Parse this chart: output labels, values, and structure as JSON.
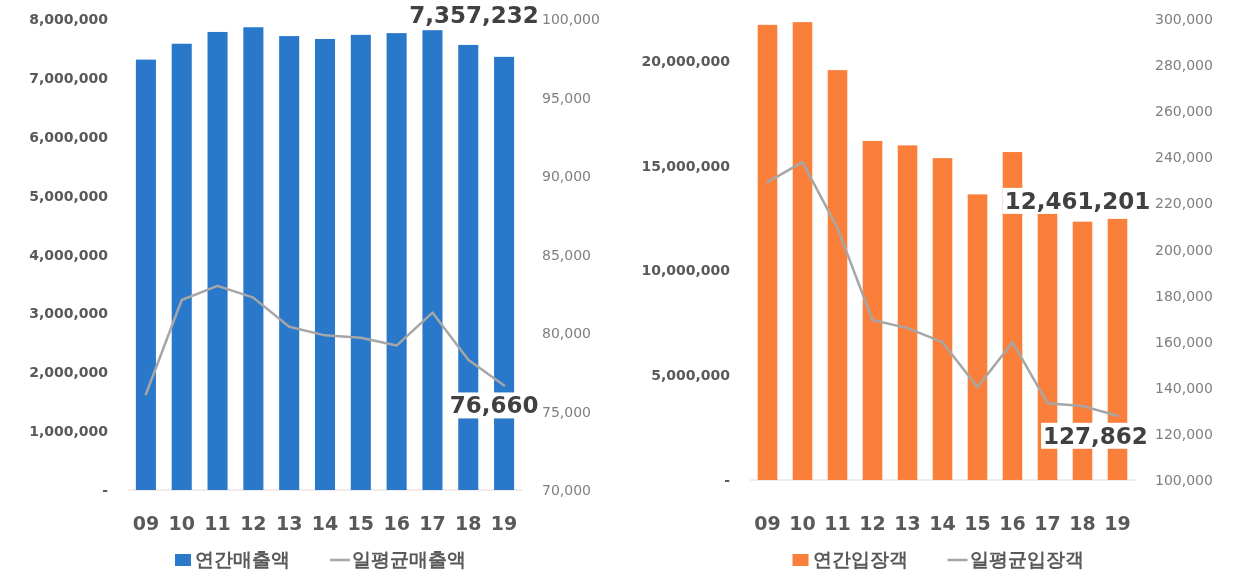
{
  "chart_data": [
    {
      "type": "bar",
      "categories": [
        "09",
        "10",
        "11",
        "12",
        "13",
        "14",
        "15",
        "16",
        "17",
        "18",
        "19"
      ],
      "series": [
        {
          "name": "연간매출액",
          "color": "#2a78c9",
          "values": [
            7310000,
            7580000,
            7780000,
            7860000,
            7710000,
            7660000,
            7730000,
            7760000,
            7810000,
            7560000,
            7357232
          ]
        },
        {
          "name": "일평균매출액",
          "type": "line",
          "axis": "y2",
          "color": "#a6a6a6",
          "values": [
            76100,
            82100,
            83000,
            82250,
            80400,
            79850,
            79700,
            79200,
            81300,
            78300,
            76660
          ]
        }
      ],
      "ylim": [
        0,
        8000000
      ],
      "yticks": [
        {
          "value": 0,
          "label": "-"
        },
        {
          "value": 1000000,
          "label": "1,000,000"
        },
        {
          "value": 2000000,
          "label": "2,000,000"
        },
        {
          "value": 3000000,
          "label": "3,000,000"
        },
        {
          "value": 4000000,
          "label": "4,000,000"
        },
        {
          "value": 5000000,
          "label": "5,000,000"
        },
        {
          "value": 6000000,
          "label": "6,000,000"
        },
        {
          "value": 7000000,
          "label": "7,000,000"
        },
        {
          "value": 8000000,
          "label": "8,000,000"
        }
      ],
      "y2lim": [
        70000,
        100000
      ],
      "y2ticks": [
        {
          "value": 70000,
          "label": "70,000"
        },
        {
          "value": 75000,
          "label": "75,000"
        },
        {
          "value": 80000,
          "label": "80,000"
        },
        {
          "value": 85000,
          "label": "85,000"
        },
        {
          "value": 90000,
          "label": "90,000"
        },
        {
          "value": 95000,
          "label": "95,000"
        },
        {
          "value": 100000,
          "label": "100,000"
        }
      ],
      "annotations": [
        {
          "text": "7,357,232",
          "x": "19",
          "y": 7357232
        },
        {
          "text": "76,660",
          "x": "19",
          "y": 76660
        }
      ],
      "legend": "bottom"
    },
    {
      "type": "bar",
      "categories": [
        "09",
        "10",
        "11",
        "12",
        "13",
        "14",
        "15",
        "16",
        "17",
        "18",
        "19"
      ],
      "series": [
        {
          "name": "연간입장객",
          "color": "#f97f3b",
          "values": [
            21720000,
            21850000,
            19560000,
            16180000,
            15970000,
            15360000,
            13630000,
            15650000,
            12730000,
            12330000,
            12461201
          ]
        },
        {
          "name": "일평균입장객",
          "type": "line",
          "axis": "y2",
          "color": "#a6a6a6",
          "values": [
            229200,
            237900,
            209300,
            169400,
            165900,
            159800,
            140200,
            159800,
            133300,
            132100,
            127862
          ]
        }
      ],
      "ylim": [
        0,
        22000000
      ],
      "yticks": [
        {
          "value": 0,
          "label": "-"
        },
        {
          "value": 5000000,
          "label": "5,000,000"
        },
        {
          "value": 10000000,
          "label": "10,000,000"
        },
        {
          "value": 15000000,
          "label": "15,000,000"
        },
        {
          "value": 20000000,
          "label": "20,000,000"
        }
      ],
      "y2lim": [
        100000,
        300000
      ],
      "y2ticks": [
        {
          "value": 100000,
          "label": "100,000"
        },
        {
          "value": 120000,
          "label": "120,000"
        },
        {
          "value": 140000,
          "label": "140,000"
        },
        {
          "value": 160000,
          "label": "160,000"
        },
        {
          "value": 180000,
          "label": "180,000"
        },
        {
          "value": 200000,
          "label": "200,000"
        },
        {
          "value": 220000,
          "label": "220,000"
        },
        {
          "value": 240000,
          "label": "240,000"
        },
        {
          "value": 260000,
          "label": "260,000"
        },
        {
          "value": 280000,
          "label": "280,000"
        },
        {
          "value": 300000,
          "label": "300,000"
        }
      ],
      "annotations": [
        {
          "text": "12,461,201",
          "x": "19",
          "y": 12461201
        },
        {
          "text": "127,862",
          "x": "19",
          "y": 127862
        }
      ],
      "legend": "bottom"
    }
  ]
}
